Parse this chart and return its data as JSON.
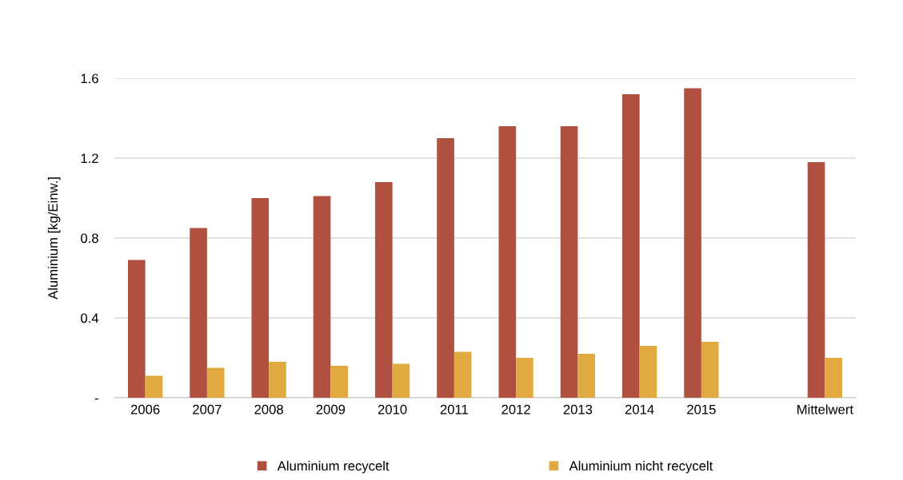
{
  "chart_data": {
    "type": "bar",
    "ylabel": "Aluminium [kg/Einw.]",
    "categories": [
      "2006",
      "2007",
      "2008",
      "2009",
      "2010",
      "2011",
      "2012",
      "2013",
      "2014",
      "2015",
      null,
      "Mittelwert"
    ],
    "series": [
      {
        "name": "Aluminium recycelt",
        "color": "#b05040",
        "values": [
          0.69,
          0.85,
          1.0,
          1.01,
          1.08,
          1.3,
          1.36,
          1.36,
          1.52,
          1.55,
          null,
          1.18
        ]
      },
      {
        "name": "Aluminium nicht recycelt",
        "color": "#e0aa40",
        "values": [
          0.11,
          0.15,
          0.18,
          0.16,
          0.17,
          0.23,
          0.2,
          0.22,
          0.26,
          0.28,
          null,
          0.2
        ]
      }
    ],
    "ylim": [
      0,
      1.6
    ],
    "yticks": [
      {
        "value": 0,
        "label": "-"
      },
      0.4,
      0.8,
      1.2,
      1.6
    ],
    "grid": "y",
    "legend": "bottom"
  }
}
